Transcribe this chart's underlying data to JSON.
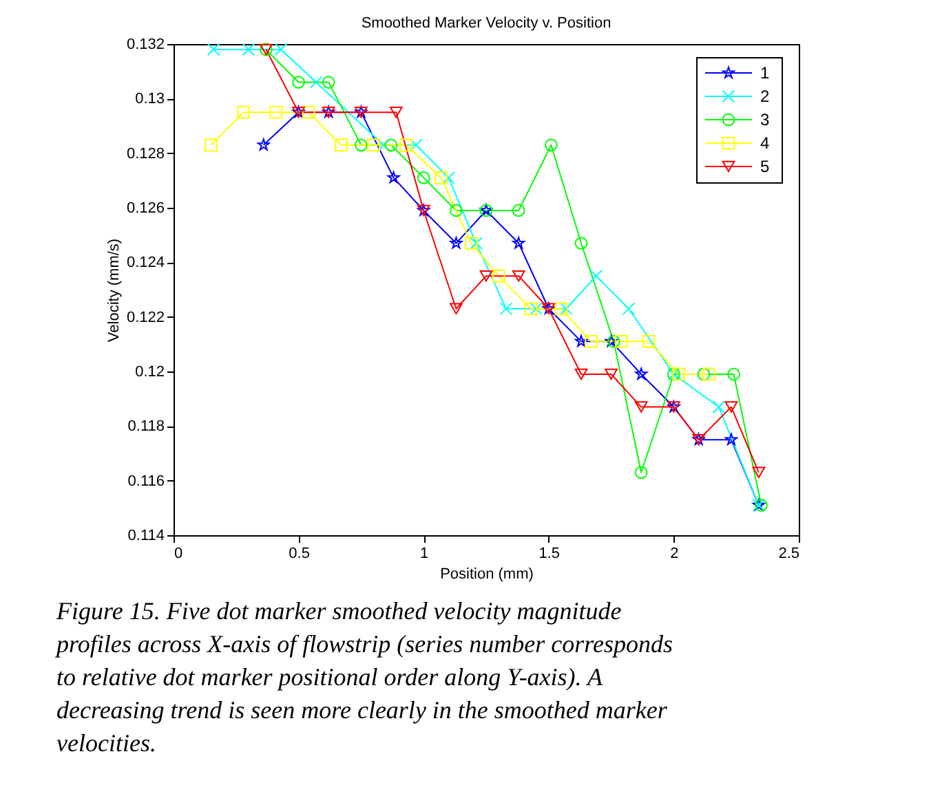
{
  "chart_data": {
    "type": "line",
    "title": "Smoothed Marker Velocity v. Position",
    "xlabel": "Position (mm)",
    "ylabel": "Velocity (mm/s)",
    "xlim": [
      0,
      2.5
    ],
    "xticks": [
      0,
      0.5,
      1,
      1.5,
      2,
      2.5
    ],
    "ylim": [
      0.114,
      0.132
    ],
    "yticks": [
      0.114,
      0.116,
      0.118,
      0.12,
      0.122,
      0.124,
      0.126,
      0.128,
      0.13,
      0.132
    ],
    "grid": false,
    "legend": "top right",
    "line_style": "solid",
    "series": [
      {
        "name": "1",
        "color": "#0000ff",
        "marker": "star",
        "x": [
          0.36,
          0.5,
          0.62,
          0.75,
          0.88,
          1.0,
          1.13,
          1.25,
          1.38,
          1.5,
          1.63,
          1.75,
          1.87,
          2.0,
          2.1,
          2.23,
          2.34
        ],
        "values": [
          0.1283,
          0.1295,
          0.1295,
          0.1295,
          0.1271,
          0.1259,
          0.1247,
          0.1259,
          0.1247,
          0.1223,
          0.1211,
          0.1211,
          0.1199,
          0.1187,
          0.1175,
          0.1175,
          0.1151
        ]
      },
      {
        "name": "2",
        "color": "#00ffff",
        "marker": "cross",
        "x": [
          0.16,
          0.3,
          0.43,
          0.57,
          0.84,
          0.97,
          1.1,
          1.21,
          1.33,
          1.45,
          1.57,
          1.69,
          1.82,
          2.0,
          2.18,
          2.34
        ],
        "values": [
          0.1318,
          0.1318,
          0.1318,
          0.1306,
          0.1283,
          0.1283,
          0.1271,
          0.1247,
          0.1223,
          0.1223,
          0.1223,
          0.1235,
          0.1223,
          0.1199,
          0.1187,
          0.1151
        ]
      },
      {
        "name": "3",
        "color": "#00ff00",
        "marker": "circle",
        "x": [
          0.37,
          0.5,
          0.62,
          0.75,
          0.87,
          1.0,
          1.13,
          1.25,
          1.38,
          1.51,
          1.63,
          1.76,
          1.87,
          2.0,
          2.12,
          2.24,
          2.35
        ],
        "values": [
          0.1318,
          0.1306,
          0.1306,
          0.1283,
          0.1283,
          0.1271,
          0.1259,
          0.1259,
          0.1259,
          0.1283,
          0.1247,
          0.1211,
          0.1163,
          0.1199,
          0.1199,
          0.1199,
          0.1151
        ]
      },
      {
        "name": "4",
        "color": "#ffff00",
        "marker": "square",
        "x": [
          0.15,
          0.28,
          0.41,
          0.54,
          0.67,
          0.8,
          0.93,
          1.07,
          1.19,
          1.3,
          1.43,
          1.55,
          1.67,
          1.79,
          1.9,
          2.02,
          2.14
        ],
        "values": [
          0.1283,
          0.1295,
          0.1295,
          0.1295,
          0.1283,
          0.1283,
          0.1283,
          0.1271,
          0.1247,
          0.1235,
          0.1223,
          0.1223,
          0.1211,
          0.1211,
          0.1211,
          0.1199,
          0.1199
        ]
      },
      {
        "name": "5",
        "color": "#ff0000",
        "marker": "triangle",
        "x": [
          0.37,
          0.5,
          0.62,
          0.75,
          0.89,
          1.0,
          1.13,
          1.25,
          1.38,
          1.5,
          1.63,
          1.75,
          1.87,
          2.0,
          2.1,
          2.23,
          2.34
        ],
        "values": [
          0.1318,
          0.1295,
          0.1295,
          0.1295,
          0.1295,
          0.1259,
          0.1223,
          0.1235,
          0.1235,
          0.1223,
          0.1199,
          0.1199,
          0.1187,
          0.1187,
          0.1175,
          0.1187,
          0.1163
        ]
      }
    ],
    "annotations": [
      "Figure 15. Five dot marker smoothed velocity magnitude profiles across X-axis of flowstrip (series number corresponds to relative dot marker positional order along Y-axis).  A decreasing trend is seen more clearly in the smoothed marker velocities."
    ]
  }
}
